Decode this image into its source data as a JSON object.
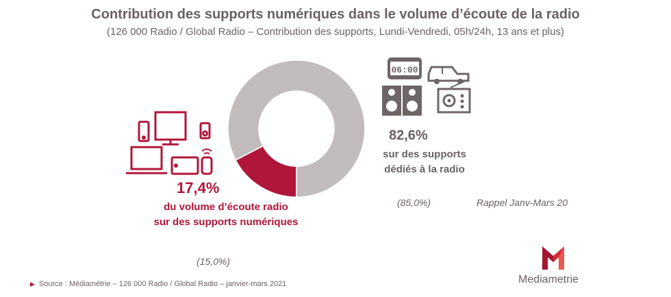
{
  "header": {
    "title": "Contribution des supports numériques dans le volume d’écoute de la radio",
    "subtitle": "(126 000 Radio / Global Radio – Contribution des supports, Lundi-Vendredi, 05h/24h, 13 ans et plus)"
  },
  "chart_data": {
    "type": "pie",
    "donut": true,
    "categories": [
      "sur des supports numériques",
      "sur des supports dédiés à la radio"
    ],
    "values": [
      17.4,
      82.6
    ],
    "colors": [
      "#b0163a",
      "#c2bcbc"
    ],
    "labels": [
      {
        "value": "17,4%",
        "text": [
          "du volume d’écoute radio",
          "sur des supports numériques"
        ],
        "previous": "(15,0%)"
      },
      {
        "value": "82,6%",
        "text": [
          "sur des supports",
          "dédiés à la radio"
        ],
        "previous": "(85,0%)"
      }
    ],
    "reminder_label": "Rappel Janv-Mars 20"
  },
  "icons": {
    "digital": [
      "smartphone-icon",
      "monitor-icon",
      "media-player-icon",
      "laptop-icon",
      "tablet-icon",
      "smart-speaker-icon"
    ],
    "dedicated": [
      "alarm-clock-radio-icon",
      "car-icon",
      "hifi-speakers-icon",
      "radio-set-icon"
    ],
    "alarm_display": "06:00"
  },
  "footer": {
    "source": "Source : Médiamétrie – 126 000 Radio / Global Radio – janvier-mars 2021",
    "logo_text": "Mediametrie"
  },
  "colors": {
    "accent": "#b0163a",
    "grey_text": "#6b6061",
    "grey_icon": "#6e6566"
  }
}
